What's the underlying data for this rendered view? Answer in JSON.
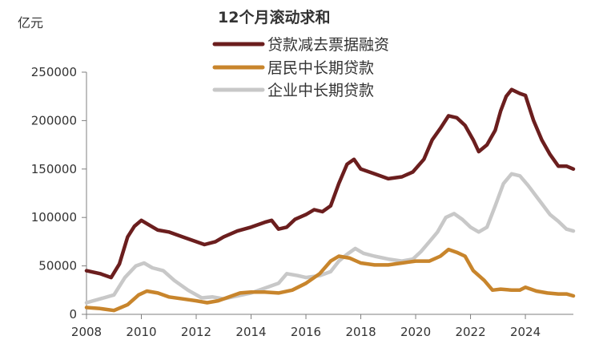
{
  "chart_data": {
    "type": "line",
    "title": "12个月滚动求和",
    "unit_label": "亿元",
    "xlim": [
      2008,
      2025.75
    ],
    "ylim": [
      0,
      250000
    ],
    "x_ticks": [
      "2008",
      "2010",
      "2012",
      "2014",
      "2016",
      "2018",
      "2020",
      "2022",
      "2024"
    ],
    "y_ticks": [
      "0",
      "50000",
      "100000",
      "150000",
      "200000",
      "250000"
    ],
    "grid": false,
    "legend_position": "top-center",
    "colors": {
      "series1": "#6B1E1E",
      "series2": "#C8852C",
      "series3": "#C8C8C8",
      "axis": "#7F7F7F"
    },
    "series": [
      {
        "name": "贷款减去票据融资",
        "color": "#6B1E1E",
        "points": [
          [
            2008.0,
            45000
          ],
          [
            2008.5,
            42000
          ],
          [
            2008.9,
            38000
          ],
          [
            2009.2,
            52000
          ],
          [
            2009.5,
            80000
          ],
          [
            2009.75,
            91000
          ],
          [
            2010.0,
            97000
          ],
          [
            2010.3,
            92000
          ],
          [
            2010.6,
            87000
          ],
          [
            2011.0,
            85000
          ],
          [
            2011.5,
            80000
          ],
          [
            2012.0,
            75000
          ],
          [
            2012.3,
            72000
          ],
          [
            2012.7,
            75000
          ],
          [
            2013.0,
            80000
          ],
          [
            2013.5,
            86000
          ],
          [
            2014.0,
            90000
          ],
          [
            2014.5,
            95000
          ],
          [
            2014.75,
            97000
          ],
          [
            2015.0,
            88000
          ],
          [
            2015.3,
            90000
          ],
          [
            2015.6,
            98000
          ],
          [
            2016.0,
            103000
          ],
          [
            2016.3,
            108000
          ],
          [
            2016.6,
            106000
          ],
          [
            2016.9,
            112000
          ],
          [
            2017.2,
            135000
          ],
          [
            2017.5,
            155000
          ],
          [
            2017.75,
            160000
          ],
          [
            2018.0,
            150000
          ],
          [
            2018.5,
            145000
          ],
          [
            2019.0,
            140000
          ],
          [
            2019.5,
            142000
          ],
          [
            2019.9,
            147000
          ],
          [
            2020.3,
            160000
          ],
          [
            2020.6,
            180000
          ],
          [
            2020.9,
            192000
          ],
          [
            2021.2,
            205000
          ],
          [
            2021.5,
            203000
          ],
          [
            2021.8,
            195000
          ],
          [
            2022.1,
            180000
          ],
          [
            2022.3,
            168000
          ],
          [
            2022.6,
            175000
          ],
          [
            2022.9,
            190000
          ],
          [
            2023.1,
            210000
          ],
          [
            2023.3,
            225000
          ],
          [
            2023.5,
            232000
          ],
          [
            2023.8,
            228000
          ],
          [
            2024.0,
            226000
          ],
          [
            2024.3,
            200000
          ],
          [
            2024.6,
            180000
          ],
          [
            2024.9,
            165000
          ],
          [
            2025.2,
            153000
          ],
          [
            2025.5,
            153000
          ],
          [
            2025.75,
            150000
          ]
        ]
      },
      {
        "name": "居民中长期贷款",
        "color": "#C8852C",
        "points": [
          [
            2008.0,
            7000
          ],
          [
            2008.5,
            6000
          ],
          [
            2009.0,
            4000
          ],
          [
            2009.5,
            10000
          ],
          [
            2009.9,
            20000
          ],
          [
            2010.2,
            24000
          ],
          [
            2010.6,
            22000
          ],
          [
            2011.0,
            18000
          ],
          [
            2011.5,
            16000
          ],
          [
            2012.0,
            14000
          ],
          [
            2012.4,
            12000
          ],
          [
            2012.8,
            14000
          ],
          [
            2013.2,
            18000
          ],
          [
            2013.6,
            22000
          ],
          [
            2014.0,
            23000
          ],
          [
            2014.5,
            23000
          ],
          [
            2015.0,
            22000
          ],
          [
            2015.5,
            25000
          ],
          [
            2016.0,
            32000
          ],
          [
            2016.5,
            42000
          ],
          [
            2016.9,
            55000
          ],
          [
            2017.2,
            60000
          ],
          [
            2017.6,
            58000
          ],
          [
            2018.0,
            53000
          ],
          [
            2018.5,
            51000
          ],
          [
            2019.0,
            51000
          ],
          [
            2019.5,
            53000
          ],
          [
            2020.0,
            55000
          ],
          [
            2020.5,
            55000
          ],
          [
            2020.9,
            60000
          ],
          [
            2021.2,
            67000
          ],
          [
            2021.5,
            64000
          ],
          [
            2021.8,
            60000
          ],
          [
            2022.1,
            45000
          ],
          [
            2022.5,
            35000
          ],
          [
            2022.8,
            25000
          ],
          [
            2023.1,
            26000
          ],
          [
            2023.5,
            25000
          ],
          [
            2023.8,
            25000
          ],
          [
            2024.0,
            28000
          ],
          [
            2024.4,
            24000
          ],
          [
            2024.8,
            22000
          ],
          [
            2025.2,
            21000
          ],
          [
            2025.5,
            21000
          ],
          [
            2025.75,
            19000
          ]
        ]
      },
      {
        "name": "企业中长期贷款",
        "color": "#C8C8C8",
        "points": [
          [
            2008.0,
            12000
          ],
          [
            2008.5,
            16000
          ],
          [
            2009.0,
            20000
          ],
          [
            2009.4,
            38000
          ],
          [
            2009.8,
            50000
          ],
          [
            2010.1,
            53000
          ],
          [
            2010.4,
            48000
          ],
          [
            2010.8,
            45000
          ],
          [
            2011.2,
            35000
          ],
          [
            2011.7,
            25000
          ],
          [
            2012.2,
            17000
          ],
          [
            2012.6,
            18000
          ],
          [
            2013.0,
            16000
          ],
          [
            2013.5,
            19000
          ],
          [
            2014.0,
            22000
          ],
          [
            2014.5,
            27000
          ],
          [
            2015.0,
            32000
          ],
          [
            2015.3,
            42000
          ],
          [
            2015.7,
            40000
          ],
          [
            2016.0,
            38000
          ],
          [
            2016.5,
            40000
          ],
          [
            2016.9,
            44000
          ],
          [
            2017.2,
            55000
          ],
          [
            2017.5,
            62000
          ],
          [
            2017.8,
            68000
          ],
          [
            2018.1,
            63000
          ],
          [
            2018.5,
            60000
          ],
          [
            2019.0,
            57000
          ],
          [
            2019.5,
            55000
          ],
          [
            2019.9,
            57000
          ],
          [
            2020.2,
            65000
          ],
          [
            2020.5,
            75000
          ],
          [
            2020.8,
            85000
          ],
          [
            2021.1,
            100000
          ],
          [
            2021.4,
            104000
          ],
          [
            2021.7,
            98000
          ],
          [
            2022.0,
            90000
          ],
          [
            2022.3,
            85000
          ],
          [
            2022.6,
            90000
          ],
          [
            2022.9,
            112000
          ],
          [
            2023.2,
            135000
          ],
          [
            2023.5,
            145000
          ],
          [
            2023.8,
            143000
          ],
          [
            2024.1,
            133000
          ],
          [
            2024.5,
            118000
          ],
          [
            2024.9,
            103000
          ],
          [
            2025.2,
            96000
          ],
          [
            2025.5,
            88000
          ],
          [
            2025.75,
            86000
          ]
        ]
      }
    ]
  }
}
